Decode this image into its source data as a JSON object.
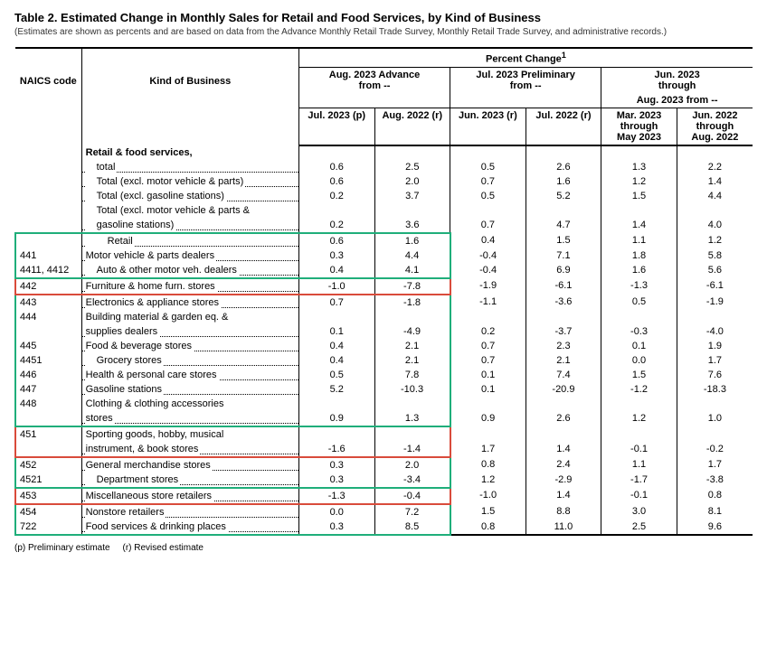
{
  "title": "Table 2.  Estimated Change in Monthly Sales for Retail and Food Services, by Kind of Business",
  "subtitle": "(Estimates are shown as percents and are based on data from the Advance Monthly Retail Trade Survey,  Monthly Retail Trade Survey, and administrative records.)",
  "headers": {
    "naics": "NAICS code",
    "kind": "Kind of Business",
    "percent_change": "Percent Change",
    "percent_change_sup": "1",
    "group1_top": "Aug. 2023 Advance",
    "group1_sub": "from --",
    "group2_top": "Jul. 2023 Preliminary",
    "group2_sub": "from --",
    "group3_top": "Jun. 2023",
    "group3_mid": "through",
    "group3_sub": "Aug. 2023 from --",
    "c1": "Jul. 2023 (p)",
    "c2": "Aug. 2022 (r)",
    "c3": "Jun. 2023 (r)",
    "c4": "Jul. 2022 (r)",
    "c5a": "Mar. 2023",
    "c5b": "through",
    "c5c": "May 2023",
    "c6a": "Jun. 2022",
    "c6b": "through",
    "c6c": "Aug. 2022"
  },
  "section_lead": "Retail & food services,",
  "rows": [
    {
      "naics": "",
      "kind": "total",
      "indent": 1,
      "v": [
        "0.6",
        "2.5",
        "0.5",
        "2.6",
        "1.3",
        "2.2"
      ],
      "hl": null
    },
    {
      "naics": "",
      "kind": "Total (excl. motor vehicle & parts)",
      "indent": 1,
      "v": [
        "0.6",
        "2.0",
        "0.7",
        "1.6",
        "1.2",
        "1.4"
      ],
      "hl": null
    },
    {
      "naics": "",
      "kind": "Total (excl. gasoline stations)",
      "indent": 1,
      "v": [
        "0.2",
        "3.7",
        "0.5",
        "5.2",
        "1.5",
        "4.4"
      ],
      "hl": null
    },
    {
      "naics": "",
      "kind": "Total (excl. motor vehicle & parts &",
      "indent": 1,
      "nodots": true,
      "v": [
        "",
        "",
        "",
        "",
        "",
        ""
      ],
      "hl": null
    },
    {
      "naics": "",
      "kind": "gasoline stations)",
      "indent": 1,
      "v": [
        "0.2",
        "3.6",
        "0.7",
        "4.7",
        "1.4",
        "4.0"
      ],
      "hl": null
    },
    {
      "naics": "",
      "kind": "Retail",
      "indent": 2,
      "v": [
        "0.6",
        "1.6",
        "0.4",
        "1.5",
        "1.1",
        "1.2"
      ],
      "hl": "green-top"
    },
    {
      "naics": "441",
      "kind": "Motor vehicle & parts dealers",
      "indent": 0,
      "v": [
        "0.3",
        "4.4",
        "-0.4",
        "7.1",
        "1.8",
        "5.8"
      ],
      "hl": "green-mid"
    },
    {
      "naics": "4411, 4412",
      "kind": "Auto & other motor veh. dealers",
      "indent": 1,
      "v": [
        "0.4",
        "4.1",
        "-0.4",
        "6.9",
        "1.6",
        "5.6"
      ],
      "hl": "green-bot"
    },
    {
      "naics": "442",
      "kind": "Furniture & home furn. stores",
      "indent": 0,
      "v": [
        "-1.0",
        "-7.8",
        "-1.9",
        "-6.1",
        "-1.3",
        "-6.1"
      ],
      "hl": "red-single"
    },
    {
      "naics": "443",
      "kind": "Electronics & appliance stores",
      "indent": 0,
      "v": [
        "0.7",
        "-1.8",
        "-1.1",
        "-3.6",
        "0.5",
        "-1.9"
      ],
      "hl": "green-top"
    },
    {
      "naics": "444",
      "kind": "Building material & garden eq. &",
      "indent": 0,
      "nodots": true,
      "v": [
        "",
        "",
        "",
        "",
        "",
        ""
      ],
      "hl": "green-mid"
    },
    {
      "naics": "",
      "kind": "supplies dealers",
      "indent": 0,
      "v": [
        "0.1",
        "-4.9",
        "0.2",
        "-3.7",
        "-0.3",
        "-4.0"
      ],
      "hl": "green-mid"
    },
    {
      "naics": "445",
      "kind": "Food & beverage stores",
      "indent": 0,
      "v": [
        "0.4",
        "2.1",
        "0.7",
        "2.3",
        "0.1",
        "1.9"
      ],
      "hl": "green-mid"
    },
    {
      "naics": "4451",
      "kind": "Grocery stores",
      "indent": 1,
      "v": [
        "0.4",
        "2.1",
        "0.7",
        "2.1",
        "0.0",
        "1.7"
      ],
      "hl": "green-mid"
    },
    {
      "naics": "446",
      "kind": "Health & personal care stores",
      "indent": 0,
      "v": [
        "0.5",
        "7.8",
        "0.1",
        "7.4",
        "1.5",
        "7.6"
      ],
      "hl": "green-mid"
    },
    {
      "naics": "447",
      "kind": "Gasoline stations",
      "indent": 0,
      "v": [
        "5.2",
        "-10.3",
        "0.1",
        "-20.9",
        "-1.2",
        "-18.3"
      ],
      "hl": "green-mid"
    },
    {
      "naics": "448",
      "kind": "Clothing & clothing accessories",
      "indent": 0,
      "nodots": true,
      "v": [
        "",
        "",
        "",
        "",
        "",
        ""
      ],
      "hl": "green-mid"
    },
    {
      "naics": "",
      "kind": "stores",
      "indent": 0,
      "v": [
        "0.9",
        "1.3",
        "0.9",
        "2.6",
        "1.2",
        "1.0"
      ],
      "hl": "green-bot"
    },
    {
      "naics": "451",
      "kind": "Sporting goods, hobby, musical",
      "indent": 0,
      "nodots": true,
      "v": [
        "",
        "",
        "",
        "",
        "",
        ""
      ],
      "hl": "red-top"
    },
    {
      "naics": "",
      "kind": "instrument, & book stores",
      "indent": 0,
      "v": [
        "-1.6",
        "-1.4",
        "1.7",
        "1.4",
        "-0.1",
        "-0.2"
      ],
      "hl": "red-bot"
    },
    {
      "naics": "452",
      "kind": "General merchandise stores",
      "indent": 0,
      "v": [
        "0.3",
        "2.0",
        "0.8",
        "2.4",
        "1.1",
        "1.7"
      ],
      "hl": "green-top"
    },
    {
      "naics": "4521",
      "kind": "Department stores",
      "indent": 1,
      "v": [
        "0.3",
        "-3.4",
        "1.2",
        "-2.9",
        "-1.7",
        "-3.8"
      ],
      "hl": "green-bot"
    },
    {
      "naics": "453",
      "kind": "Miscellaneous store retailers",
      "indent": 0,
      "v": [
        "-1.3",
        "-0.4",
        "-1.0",
        "1.4",
        "-0.1",
        "0.8"
      ],
      "hl": "red-single"
    },
    {
      "naics": "454",
      "kind": "Nonstore retailers",
      "indent": 0,
      "v": [
        "0.0",
        "7.2",
        "1.5",
        "8.8",
        "3.0",
        "8.1"
      ],
      "hl": "green-top"
    },
    {
      "naics": "722",
      "kind": "Food services & drinking places",
      "indent": 0,
      "v": [
        "0.3",
        "8.5",
        "0.8",
        "11.0",
        "2.5",
        "9.6"
      ],
      "hl": "green-bot"
    }
  ],
  "footnote_p": "(p)  Preliminary estimate",
  "footnote_r": "(r)  Revised estimate",
  "colors": {
    "green": "#1fae7a",
    "red": "#d94b3b",
    "text": "#000000",
    "bg": "#ffffff"
  },
  "highlight_columns": {
    "left_col_index": 0,
    "right_col_index": 3
  }
}
